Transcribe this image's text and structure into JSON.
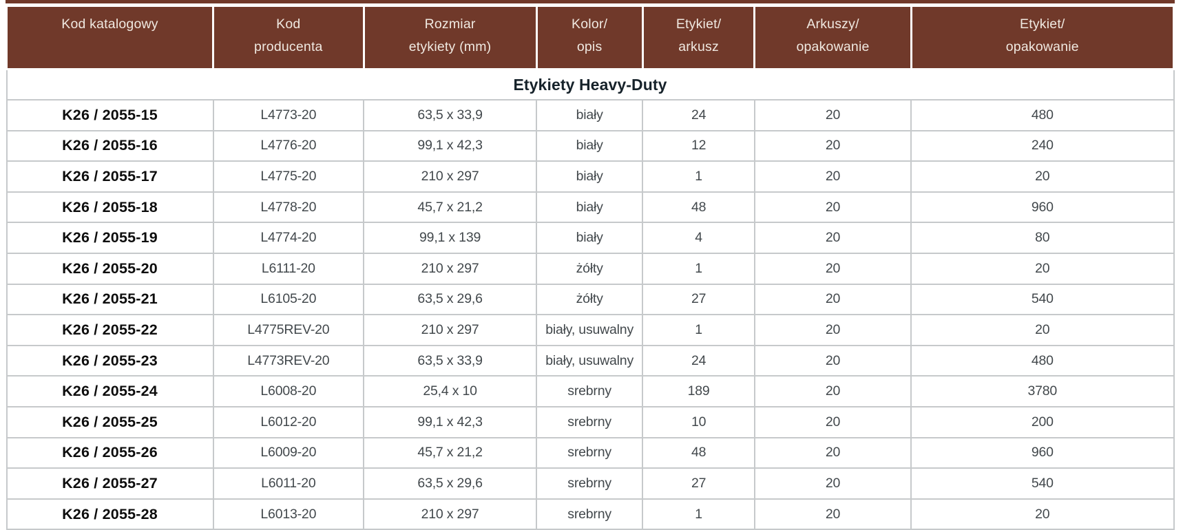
{
  "colors": {
    "header_bg": "#70392a",
    "header_text": "#f0e9e1",
    "grid_line": "#c6c9cb",
    "section_text": "#16222a",
    "cell_text": "#42484c",
    "code_text": "#0d0d0d"
  },
  "table": {
    "columns": [
      {
        "id": "kod-katalogowy",
        "line1": "Kod katalogowy",
        "line2": ""
      },
      {
        "id": "kod-producenta",
        "line1": "Kod",
        "line2": "producenta"
      },
      {
        "id": "rozmiar-etykiety",
        "line1": "Rozmiar",
        "line2": "etykiety (mm)"
      },
      {
        "id": "kolor-opis",
        "line1": "Kolor/",
        "line2": "opis"
      },
      {
        "id": "etykiet-arkusz",
        "line1": "Etykiet/",
        "line2": "arkusz"
      },
      {
        "id": "arkuszy-opakowanie",
        "line1": "Arkuszy/",
        "line2": "opakowanie"
      },
      {
        "id": "etykiet-opakowanie",
        "line1": "Etykiet/",
        "line2": "opakowanie"
      }
    ],
    "section_title": "Etykiety Heavy-Duty",
    "rows": [
      [
        "K26 / 2055-15",
        "L4773-20",
        "63,5 x 33,9",
        "biały",
        "24",
        "20",
        "480"
      ],
      [
        "K26 / 2055-16",
        "L4776-20",
        "99,1 x 42,3",
        "biały",
        "12",
        "20",
        "240"
      ],
      [
        "K26 / 2055-17",
        "L4775-20",
        "210 x 297",
        "biały",
        "1",
        "20",
        "20"
      ],
      [
        "K26 / 2055-18",
        "L4778-20",
        "45,7 x 21,2",
        "biały",
        "48",
        "20",
        "960"
      ],
      [
        "K26 / 2055-19",
        "L4774-20",
        "99,1 x 139",
        "biały",
        "4",
        "20",
        "80"
      ],
      [
        "K26 / 2055-20",
        "L6111-20",
        "210 x 297",
        "żółty",
        "1",
        "20",
        "20"
      ],
      [
        "K26 / 2055-21",
        "L6105-20",
        "63,5 x 29,6",
        "żółty",
        "27",
        "20",
        "540"
      ],
      [
        "K26 / 2055-22",
        "L4775REV-20",
        "210 x 297",
        "biały, usuwalny",
        "1",
        "20",
        "20"
      ],
      [
        "K26 / 2055-23",
        "L4773REV-20",
        "63,5 x 33,9",
        "biały, usuwalny",
        "24",
        "20",
        "480"
      ],
      [
        "K26 / 2055-24",
        "L6008-20",
        "25,4 x 10",
        "srebrny",
        "189",
        "20",
        "3780"
      ],
      [
        "K26 / 2055-25",
        "L6012-20",
        "99,1 x 42,3",
        "srebrny",
        "10",
        "20",
        "200"
      ],
      [
        "K26 / 2055-26",
        "L6009-20",
        "45,7 x 21,2",
        "srebrny",
        "48",
        "20",
        "960"
      ],
      [
        "K26 / 2055-27",
        "L6011-20",
        "63,5 x 29,6",
        "srebrny",
        "27",
        "20",
        "540"
      ],
      [
        "K26 / 2055-28",
        "L6013-20",
        "210 x 297",
        "srebrny",
        "1",
        "20",
        "20"
      ]
    ]
  }
}
